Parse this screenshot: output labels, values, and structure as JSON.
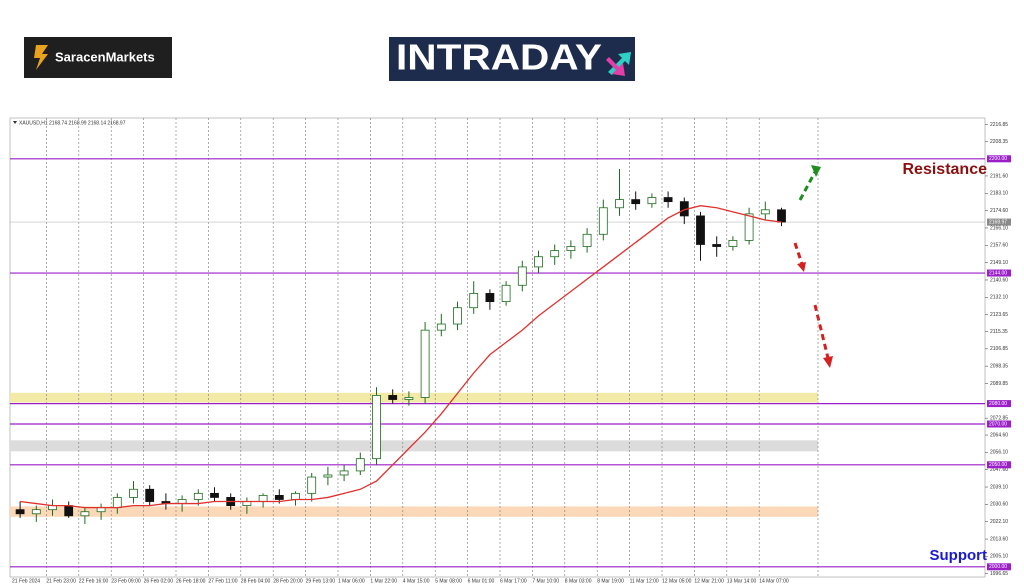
{
  "logos": {
    "brand": "SaracenMarkets",
    "banner": "INTRADAY"
  },
  "chart_data": {
    "type": "candlestick",
    "title": "XAUUSD,H1  2168.74 2168.99 2168.14 2168.97",
    "categories": [
      "21 Feb 2024",
      null,
      "21 Feb 23:00",
      null,
      "22 Feb 16:00",
      null,
      "23 Feb 09:00",
      null,
      "26 Feb 02:00",
      null,
      "26 Feb 18:00",
      null,
      "27 Feb 11:00",
      null,
      "28 Feb 04:00",
      null,
      "28 Feb 20:00",
      null,
      "29 Feb 13:00",
      null,
      "1 Mar 06:00",
      null,
      "1 Mar 22:00",
      null,
      "4 Mar 15:00",
      null,
      "5 Mar 08:00",
      null,
      "6 Mar 01:00",
      null,
      "6 Mar 17:00",
      null,
      "7 Mar 10:00",
      null,
      "8 Mar 03:00",
      null,
      "8 Mar 19:00",
      null,
      "11 Mar 12:00",
      null,
      "12 Mar 05:00",
      null,
      "12 Mar 21:00",
      null,
      "13 Mar 14:00",
      null,
      "14 Mar 07:00",
      null
    ],
    "open": [
      2028,
      2026,
      2028,
      2030,
      2025,
      2027,
      2029,
      2034,
      2038,
      2032,
      2031,
      2033,
      2036,
      2034,
      2030,
      2032,
      2035,
      2033,
      2036,
      2044,
      2045,
      2047,
      2053,
      2084,
      2082,
      2083,
      2116,
      2119,
      2127,
      2134,
      2130,
      2138,
      2147,
      2152,
      2155,
      2157,
      2163,
      2176,
      2180,
      2178,
      2181,
      2179,
      2172,
      2158,
      2157,
      2160,
      2173,
      2175
    ],
    "high": [
      2032,
      2030,
      2033,
      2032,
      2029,
      2031,
      2036,
      2042,
      2040,
      2036,
      2035,
      2038,
      2039,
      2036,
      2034,
      2036,
      2038,
      2037,
      2046,
      2049,
      2050,
      2056,
      2088,
      2087,
      2086,
      2120,
      2124,
      2130,
      2140,
      2136,
      2140,
      2150,
      2155,
      2158,
      2160,
      2166,
      2180,
      2195,
      2184,
      2183,
      2184,
      2181,
      2174,
      2162,
      2162,
      2176,
      2179,
      2176
    ],
    "low": [
      2024,
      2022,
      2025,
      2024,
      2021,
      2023,
      2026,
      2031,
      2030,
      2028,
      2027,
      2030,
      2032,
      2028,
      2026,
      2029,
      2031,
      2030,
      2032,
      2040,
      2042,
      2045,
      2050,
      2080,
      2079,
      2080,
      2113,
      2116,
      2124,
      2126,
      2128,
      2135,
      2144,
      2148,
      2151,
      2154,
      2160,
      2172,
      2175,
      2176,
      2176,
      2168,
      2150,
      2152,
      2155,
      2158,
      2170,
      2167
    ],
    "close": [
      2026,
      2028,
      2030,
      2025,
      2027,
      2029,
      2034,
      2038,
      2032,
      2031,
      2033,
      2036,
      2034,
      2030,
      2032,
      2035,
      2033,
      2036,
      2044,
      2045,
      2047,
      2053,
      2084,
      2082,
      2083,
      2116,
      2119,
      2127,
      2134,
      2130,
      2138,
      2147,
      2152,
      2155,
      2157,
      2163,
      2176,
      2180,
      2178,
      2181,
      2179,
      2172,
      2158,
      2157,
      2160,
      2173,
      2175,
      2169
    ],
    "up_color": "#1f6b1f",
    "down_color": "#111111",
    "series": [
      {
        "color": "#e0312e",
        "values": [
          2032,
          2031,
          2030,
          2030,
          2029,
          2029,
          2029,
          2030,
          2030,
          2031,
          2031,
          2031,
          2032,
          2032,
          2032,
          2032,
          2032,
          2033,
          2033,
          2034,
          2036,
          2038,
          2042,
          2050,
          2058,
          2066,
          2075,
          2085,
          2095,
          2104,
          2110,
          2116,
          2123,
          2129,
          2135,
          2141,
          2147,
          2153,
          2159,
          2165,
          2171,
          2175,
          2177,
          2176,
          2174,
          2172,
          2170,
          2169
        ]
      }
    ],
    "ylim": [
      1995,
      2220
    ],
    "yticks": [
      2216.85,
      2208.35,
      {
        "value": 2191.6,
        "label": "2191.60"
      },
      {
        "value": 2183.1,
        "label": "2183.10"
      },
      {
        "value": 2174.6,
        "label": "2174.60"
      },
      {
        "value": 2166.1,
        "label": "2166.10"
      },
      {
        "value": 2157.6,
        "label": "2157.60"
      },
      {
        "value": 2149.1,
        "label": "2149.10"
      },
      {
        "value": 2140.6,
        "label": "2140.60"
      },
      {
        "value": 2132.1,
        "label": "2132.10"
      },
      2123.65,
      2115.35,
      2106.85,
      2098.35,
      2089.85,
      2072.85,
      {
        "value": 2064.6,
        "label": "2064.60"
      },
      {
        "value": 2056.1,
        "label": "2056.10"
      },
      {
        "value": 2047.6,
        "label": "2047.60"
      },
      {
        "value": 2039.1,
        "label": "2039.10"
      },
      {
        "value": 2030.6,
        "label": "2030.60"
      },
      {
        "value": 2022.1,
        "label": "2022.10"
      },
      {
        "value": 2013.6,
        "label": "2013.60"
      },
      {
        "value": 2005.1,
        "label": "2005.10"
      },
      1996.65
    ],
    "levels": [
      {
        "value": 2200,
        "label": "2200.00"
      },
      {
        "value": 2144,
        "label": "2144.00"
      },
      {
        "value": 2080,
        "label": "2080.00"
      },
      {
        "value": 2070,
        "label": "2070.00"
      },
      {
        "value": 2050,
        "label": "2050.00"
      },
      {
        "value": 2000,
        "label": "2000.00"
      }
    ],
    "level_color": "#9b1fc9",
    "last_price": 2168.97,
    "zones": [
      {
        "from": 2080.5,
        "to": 2085.3,
        "color": "#f3eaa8"
      },
      {
        "from": 2056.6,
        "to": 2062,
        "color": "#dcdcdc"
      },
      {
        "from": 2024.5,
        "to": 2029.6,
        "color": "#fbd9b8"
      }
    ],
    "annotations": [
      {
        "text": "Resistance",
        "color": "#8b1010"
      },
      {
        "text": "Support",
        "color": "#1a1ad0"
      }
    ],
    "grid": true
  }
}
